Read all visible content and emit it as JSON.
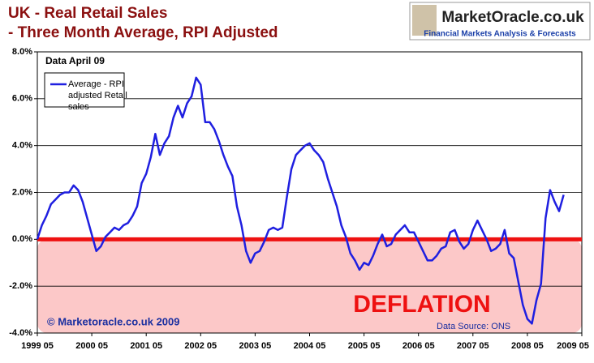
{
  "chart_data": {
    "type": "line",
    "title_lines": [
      "UK - Real Retail Sales",
      "- Three Month Average, RPI Adjusted"
    ],
    "logo": {
      "name": "MarketOracle.co.uk",
      "tagline": "Financial Markets Analysis & Forecasts"
    },
    "annotations": {
      "data_date": "Data April 09",
      "zone": "DEFLATION",
      "copyright": "© Marketoracle.co.uk 2009",
      "source": "Data Source: ONS"
    },
    "categories": [
      "1999 05",
      null,
      null,
      null,
      null,
      null,
      null,
      null,
      null,
      null,
      null,
      null,
      "2000 05",
      null,
      null,
      null,
      null,
      null,
      null,
      null,
      null,
      null,
      null,
      null,
      "2001 05",
      null,
      null,
      null,
      null,
      null,
      null,
      null,
      null,
      null,
      null,
      null,
      "2002 05",
      null,
      null,
      null,
      null,
      null,
      null,
      null,
      null,
      null,
      null,
      null,
      "2003 05",
      null,
      null,
      null,
      null,
      null,
      null,
      null,
      null,
      null,
      null,
      null,
      "2004 05",
      null,
      null,
      null,
      null,
      null,
      null,
      null,
      null,
      null,
      null,
      null,
      "2005 05",
      null,
      null,
      null,
      null,
      null,
      null,
      null,
      null,
      null,
      null,
      null,
      "2006 05",
      null,
      null,
      null,
      null,
      null,
      null,
      null,
      null,
      null,
      null,
      null,
      "2007 05",
      null,
      null,
      null,
      null,
      null,
      null,
      null,
      null,
      null,
      null,
      null,
      "2008 05",
      null,
      null,
      null,
      null,
      null,
      null,
      null,
      null,
      null,
      null,
      null,
      "2009 05"
    ],
    "series": [
      {
        "name": "Average - RPI adjusted Retail sales",
        "color": "#1f1fe0",
        "values": [
          0.0,
          0.6,
          1.0,
          1.5,
          1.7,
          1.9,
          2.0,
          2.0,
          2.3,
          2.1,
          1.6,
          0.9,
          0.2,
          -0.5,
          -0.3,
          0.1,
          0.3,
          0.5,
          0.4,
          0.6,
          0.7,
          1.0,
          1.4,
          2.4,
          2.8,
          3.5,
          4.5,
          3.6,
          4.1,
          4.4,
          5.2,
          5.7,
          5.2,
          5.8,
          6.1,
          6.9,
          6.6,
          5.0,
          5.0,
          4.7,
          4.2,
          3.6,
          3.1,
          2.7,
          1.4,
          0.6,
          -0.5,
          -1.0,
          -0.6,
          -0.5,
          -0.1,
          0.4,
          0.5,
          0.4,
          0.5,
          1.8,
          3.0,
          3.6,
          3.8,
          4.0,
          4.1,
          3.8,
          3.6,
          3.3,
          2.6,
          2.0,
          1.4,
          0.6,
          0.1,
          -0.6,
          -0.9,
          -1.3,
          -1.0,
          -1.1,
          -0.7,
          -0.2,
          0.2,
          -0.3,
          -0.2,
          0.2,
          0.4,
          0.6,
          0.3,
          0.3,
          -0.1,
          -0.5,
          -0.9,
          -0.9,
          -0.7,
          -0.4,
          -0.3,
          0.3,
          0.4,
          -0.1,
          -0.4,
          -0.2,
          0.4,
          0.8,
          0.4,
          0.0,
          -0.5,
          -0.4,
          -0.2,
          0.4,
          -0.6,
          -0.8,
          -1.8,
          -2.8,
          -3.4,
          -3.6,
          -2.6,
          -1.9,
          0.9,
          2.1,
          1.6,
          1.2,
          1.9,
          null,
          null,
          null,
          null
        ]
      }
    ],
    "ylim": [
      -4,
      8
    ],
    "yticks": [
      {
        "value": -4,
        "label": "-4.0%"
      },
      {
        "value": -2,
        "label": "-2.0%"
      },
      {
        "value": 0,
        "label": "0.0%"
      },
      {
        "value": 2,
        "label": "2.0%"
      },
      {
        "value": 4,
        "label": "4.0%"
      },
      {
        "value": 6,
        "label": "6.0%"
      },
      {
        "value": 8,
        "label": "8.0%"
      }
    ],
    "grid": true,
    "zero_color": "#ee1111",
    "deflation_fill": "#fcc8c8"
  }
}
